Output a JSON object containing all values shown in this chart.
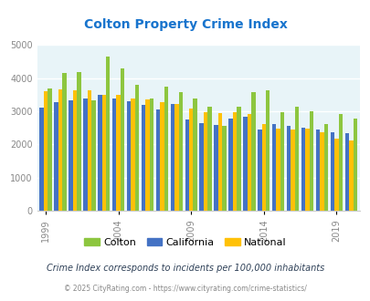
{
  "title": "Colton Property Crime Index",
  "title_color": "#1874CD",
  "years": [
    1999,
    2000,
    2001,
    2002,
    2003,
    2004,
    2005,
    2006,
    2007,
    2008,
    2009,
    2010,
    2011,
    2012,
    2013,
    2014,
    2015,
    2016,
    2017,
    2018,
    2019,
    2020
  ],
  "colton": [
    3700,
    4150,
    4200,
    3340,
    4650,
    4300,
    3800,
    3400,
    3750,
    3590,
    3380,
    3130,
    2560,
    3130,
    3580,
    3640,
    2980,
    3140,
    3000,
    2620,
    2910,
    2780
  ],
  "california": [
    3100,
    3270,
    3320,
    3400,
    3500,
    3400,
    3310,
    3200,
    3050,
    3230,
    2750,
    2650,
    2600,
    2780,
    2830,
    2460,
    2610,
    2560,
    2520,
    2460,
    2380,
    2330
  ],
  "national": [
    3600,
    3670,
    3650,
    3630,
    3500,
    3490,
    3380,
    3360,
    3270,
    3220,
    3080,
    2980,
    2950,
    2980,
    2930,
    2620,
    2490,
    2460,
    2470,
    2360,
    2190,
    2120
  ],
  "colton_color": "#8DC63F",
  "california_color": "#4472C4",
  "national_color": "#FFC107",
  "bg_color": "#E8F4F8",
  "ylim": [
    0,
    5000
  ],
  "yticks": [
    0,
    1000,
    2000,
    3000,
    4000,
    5000
  ],
  "xlabel_ticks": [
    1999,
    2004,
    2009,
    2014,
    2019
  ],
  "footnote1": "Crime Index corresponds to incidents per 100,000 inhabitants",
  "footnote2": "© 2025 CityRating.com - https://www.cityrating.com/crime-statistics/",
  "footnote1_color": "#2E4057",
  "footnote2_color": "#888888",
  "legend_labels": [
    "Colton",
    "California",
    "National"
  ]
}
